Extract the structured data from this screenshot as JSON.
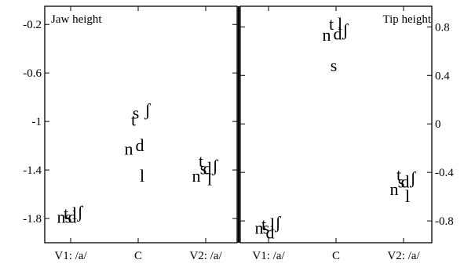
{
  "chart_data": [
    {
      "type": "scatter",
      "title": "Jaw height",
      "categories": [
        "V1: /a/",
        "C",
        "V2: /a/"
      ],
      "y_ticks": [
        "-0.2",
        "-0.6",
        "-1",
        "-1.4",
        "-1.8"
      ],
      "ylim": [
        -2.0,
        -0.05
      ],
      "grid": false,
      "labels": [
        "t",
        "s",
        "d",
        "n",
        "l",
        "ʃ"
      ],
      "points": [
        {
          "label": "t",
          "x": "V1: /a/",
          "y": -1.76
        },
        {
          "label": "l",
          "x": "V1: /a/",
          "y": -1.76
        },
        {
          "label": "ʃ",
          "x": "V1: /a/",
          "y": -1.75
        },
        {
          "label": "n",
          "x": "V1: /a/",
          "y": -1.79
        },
        {
          "label": "s",
          "x": "V1: /a/",
          "y": -1.79
        },
        {
          "label": "d",
          "x": "V1: /a/",
          "y": -1.79
        },
        {
          "label": "s",
          "x": "C",
          "y": -0.93
        },
        {
          "label": "ʃ",
          "x": "C",
          "y": -0.91
        },
        {
          "label": "t",
          "x": "C",
          "y": -0.99
        },
        {
          "label": "d",
          "x": "C",
          "y": -1.2
        },
        {
          "label": "n",
          "x": "C",
          "y": -1.23
        },
        {
          "label": "l",
          "x": "C",
          "y": -1.45
        },
        {
          "label": "t",
          "x": "V2: /a/",
          "y": -1.33
        },
        {
          "label": "s",
          "x": "V2: /a/",
          "y": -1.39
        },
        {
          "label": "d",
          "x": "V2: /a/",
          "y": -1.39
        },
        {
          "label": "ʃ",
          "x": "V2: /a/",
          "y": -1.37
        },
        {
          "label": "n",
          "x": "V2: /a/",
          "y": -1.45
        },
        {
          "label": "l",
          "x": "V2: /a/",
          "y": -1.48
        }
      ]
    },
    {
      "type": "scatter",
      "title": "Tip height",
      "categories": [
        "V1: /a/",
        "C",
        "V2: /a/"
      ],
      "y_ticks": [
        "0.8",
        "0.4",
        "0",
        "-0.4",
        "-0.8"
      ],
      "ylim": [
        -0.98,
        0.97
      ],
      "grid": false,
      "labels": [
        "t",
        "s",
        "d",
        "n",
        "l",
        "ʃ"
      ],
      "points": [
        {
          "label": "t",
          "x": "V1: /a/",
          "y": -0.83
        },
        {
          "label": "l",
          "x": "V1: /a/",
          "y": -0.83
        },
        {
          "label": "ʃ",
          "x": "V1: /a/",
          "y": -0.82
        },
        {
          "label": "s",
          "x": "V1: /a/",
          "y": -0.86
        },
        {
          "label": "n",
          "x": "V1: /a/",
          "y": -0.86
        },
        {
          "label": "d",
          "x": "V1: /a/",
          "y": -0.9
        },
        {
          "label": "t",
          "x": "C",
          "y": 0.82
        },
        {
          "label": "l",
          "x": "C",
          "y": 0.82
        },
        {
          "label": "n",
          "x": "C",
          "y": 0.73
        },
        {
          "label": "d",
          "x": "C",
          "y": 0.74
        },
        {
          "label": "ʃ",
          "x": "C",
          "y": 0.77
        },
        {
          "label": "s",
          "x": "C",
          "y": 0.48
        },
        {
          "label": "t",
          "x": "V2: /a/",
          "y": -0.42
        },
        {
          "label": "s",
          "x": "V2: /a/",
          "y": -0.48
        },
        {
          "label": "d",
          "x": "V2: /a/",
          "y": -0.48
        },
        {
          "label": "ʃ",
          "x": "V2: /a/",
          "y": -0.45
        },
        {
          "label": "n",
          "x": "V2: /a/",
          "y": -0.54
        },
        {
          "label": "l",
          "x": "V2: /a/",
          "y": -0.6
        }
      ]
    }
  ]
}
